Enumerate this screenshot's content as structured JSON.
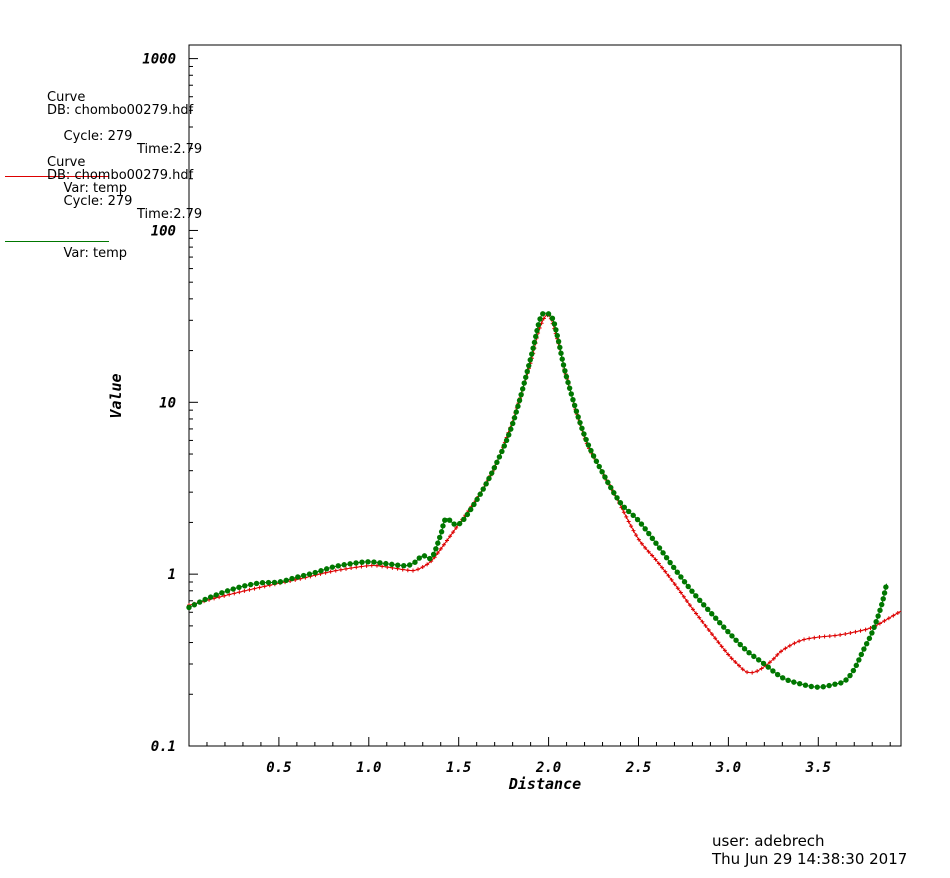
{
  "legend": [
    {
      "title": "Curve",
      "db": "DB: chombo00279.hdf",
      "cycle": "Cycle: 279",
      "time": "Time:2.79",
      "var": "Var: temp",
      "color": "#dd0000"
    },
    {
      "title": "Curve",
      "db": "DB: chombo00279.hdf",
      "cycle": "Cycle: 279",
      "time": "Time:2.79",
      "var": "Var: temp",
      "color": "#007700"
    }
  ],
  "footer": {
    "user": "user: adebrech",
    "date": "Thu Jun 29 14:38:30 2017"
  },
  "chart_data": {
    "type": "line",
    "xlabel": "Distance",
    "ylabel": "Value",
    "yscale": "log",
    "xlim": [
      0.0,
      3.96
    ],
    "ylim": [
      0.1,
      1200
    ],
    "xticks": [
      0.5,
      1.0,
      1.5,
      2.0,
      2.5,
      3.0,
      3.5
    ],
    "xtick_labels": [
      "0.5",
      "1.0",
      "1.5",
      "2.0",
      "2.5",
      "3.0",
      "3.5"
    ],
    "yticks": [
      0.1,
      1,
      10,
      100,
      1000
    ],
    "ytick_labels": [
      "0.1",
      "1",
      "10",
      "100",
      "1000"
    ],
    "grid": false,
    "series": [
      {
        "color": "#dd0000",
        "marker": "plus",
        "x": [
          0.0,
          0.2,
          0.4,
          0.6,
          0.8,
          1.0,
          1.1,
          1.2,
          1.25,
          1.3,
          1.35,
          1.4,
          1.5,
          1.6,
          1.7,
          1.8,
          1.9,
          1.95,
          2.0,
          2.05,
          2.1,
          2.2,
          2.3,
          2.4,
          2.5,
          2.6,
          2.7,
          2.8,
          2.9,
          3.0,
          3.05,
          3.1,
          3.15,
          3.2,
          3.25,
          3.3,
          3.4,
          3.5,
          3.6,
          3.7,
          3.8,
          3.9,
          3.96
        ],
        "y": [
          0.66,
          0.75,
          0.84,
          0.93,
          1.04,
          1.12,
          1.1,
          1.06,
          1.05,
          1.1,
          1.2,
          1.4,
          1.95,
          2.75,
          4.2,
          7.8,
          17,
          27,
          32,
          23,
          14,
          6.2,
          3.9,
          2.5,
          1.6,
          1.2,
          0.88,
          0.63,
          0.46,
          0.34,
          0.3,
          0.27,
          0.27,
          0.29,
          0.32,
          0.36,
          0.41,
          0.43,
          0.44,
          0.46,
          0.49,
          0.56,
          0.61
        ]
      },
      {
        "color": "#007700",
        "marker": "circle",
        "x": [
          0.0,
          0.1,
          0.2,
          0.3,
          0.4,
          0.5,
          0.6,
          0.7,
          0.8,
          0.9,
          1.0,
          1.1,
          1.2,
          1.25,
          1.3,
          1.35,
          1.4,
          1.43,
          1.5,
          1.6,
          1.7,
          1.8,
          1.9,
          1.95,
          1.98,
          2.02,
          2.05,
          2.1,
          2.2,
          2.3,
          2.4,
          2.5,
          2.6,
          2.7,
          2.8,
          2.9,
          3.0,
          3.1,
          3.2,
          3.3,
          3.4,
          3.5,
          3.6,
          3.65,
          3.7,
          3.75,
          3.8,
          3.85,
          3.88
        ],
        "y": [
          0.64,
          0.72,
          0.79,
          0.85,
          0.89,
          0.9,
          0.96,
          1.02,
          1.1,
          1.15,
          1.18,
          1.15,
          1.12,
          1.16,
          1.28,
          1.25,
          1.7,
          2.1,
          1.95,
          2.7,
          4.2,
          7.5,
          18,
          30,
          33,
          31,
          24,
          14,
          6.4,
          3.9,
          2.6,
          2.05,
          1.5,
          1.08,
          0.79,
          0.6,
          0.46,
          0.36,
          0.3,
          0.25,
          0.23,
          0.22,
          0.23,
          0.24,
          0.28,
          0.36,
          0.46,
          0.65,
          0.88
        ]
      }
    ]
  }
}
